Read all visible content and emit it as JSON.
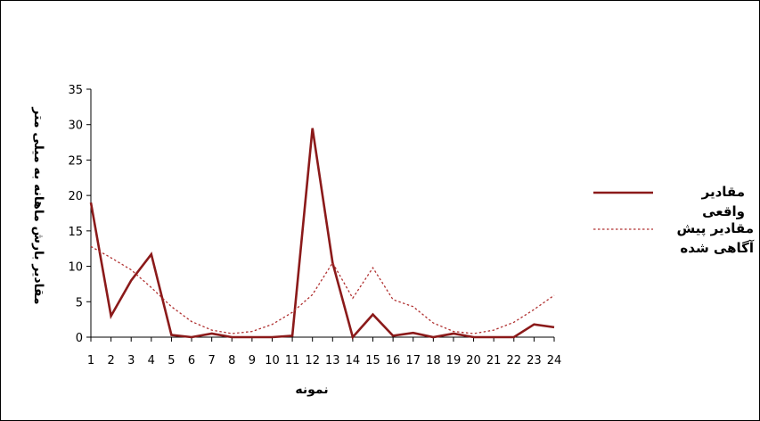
{
  "chart_data": {
    "type": "line",
    "title": "",
    "xlabel": "نمونه",
    "ylabel": "مقادیر بارش ماهانه به میلی متر",
    "x": [
      "1",
      "2",
      "3",
      "4",
      "5",
      "6",
      "7",
      "8",
      "9",
      "10",
      "11",
      "12",
      "13",
      "14",
      "15",
      "16",
      "17",
      "18",
      "19",
      "20",
      "21",
      "22",
      "23",
      "24"
    ],
    "ylim": [
      0,
      35
    ],
    "yticks": [
      "0",
      "5",
      "10",
      "15",
      "20",
      "25",
      "30",
      "35"
    ],
    "grid": false,
    "legend_position": "right",
    "series": [
      {
        "name": "مقادیر واقعی",
        "style": "solid",
        "color": "#8b1a1a",
        "values": [
          19,
          3,
          8,
          11.7,
          0.3,
          0,
          0.5,
          0,
          0,
          0,
          0.2,
          29.5,
          10.5,
          0,
          3.2,
          0.2,
          0.6,
          0,
          0.5,
          0,
          0,
          0,
          1.8,
          1.4
        ]
      },
      {
        "name": "مقادیر پیش آگاهی شده",
        "style": "dotted",
        "color": "#b03030",
        "values": [
          12.8,
          11.2,
          9.5,
          7,
          4.3,
          2.2,
          1,
          0.5,
          0.8,
          1.8,
          3.5,
          6,
          10.5,
          5.5,
          9.8,
          5.3,
          4.3,
          2,
          0.8,
          0.5,
          1,
          2.1,
          3.9,
          5.9
        ]
      }
    ]
  }
}
